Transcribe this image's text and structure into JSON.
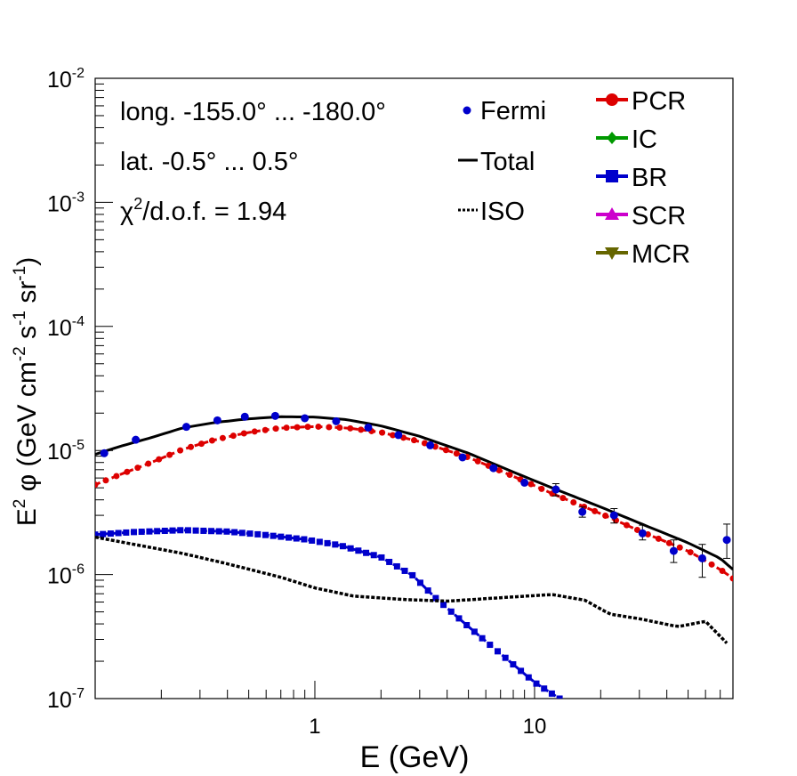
{
  "chart_data": {
    "type": "line",
    "xlabel": "E (GeV)",
    "ylabel_parts": {
      "a": "E",
      "a_sup": "2",
      "b": " φ (GeV cm",
      "b_sup": "-2",
      "c": " s",
      "c_sup": "-1",
      "d": " sr",
      "d_sup": "-1",
      "e": ")"
    },
    "x_scale": "log",
    "y_scale": "log",
    "xlim": [
      0.1,
      80
    ],
    "ylim": [
      1e-07,
      0.01
    ],
    "x_tick_labels": [
      {
        "value": 1,
        "label": "1"
      },
      {
        "value": 10,
        "label": "10"
      }
    ],
    "y_tick_labels": [
      {
        "value": 1e-07,
        "base": "10",
        "exp": "-7"
      },
      {
        "value": 1e-06,
        "base": "10",
        "exp": "-6"
      },
      {
        "value": 1e-05,
        "base": "10",
        "exp": "-5"
      },
      {
        "value": 0.0001,
        "base": "10",
        "exp": "-4"
      },
      {
        "value": 0.001,
        "base": "10",
        "exp": "-3"
      },
      {
        "value": 0.01,
        "base": "10",
        "exp": "-2"
      }
    ],
    "annotations": {
      "line1": "long. -155.0° ... -180.0°",
      "line2": "lat. -0.5° ... 0.5°",
      "line3_a": "χ",
      "line3_sup": "2",
      "line3_b": "/d.o.f. = 1.94"
    },
    "legend_left": [
      {
        "label": "Fermi",
        "style": "dot",
        "color": "#0000cc"
      },
      {
        "label": "Total",
        "style": "solid",
        "color": "#000000"
      },
      {
        "label": "ISO",
        "style": "dotted",
        "color": "#000000"
      }
    ],
    "legend_right": [
      {
        "label": "PCR",
        "marker": "circle",
        "color": "#dd0000"
      },
      {
        "label": "IC",
        "marker": "diamond",
        "color": "#009900"
      },
      {
        "label": "BR",
        "marker": "square",
        "color": "#0000cc"
      },
      {
        "label": "SCR",
        "marker": "triangle-up",
        "color": "#cc00cc"
      },
      {
        "label": "MCR",
        "marker": "triangle-down",
        "color": "#666600"
      }
    ],
    "series": [
      {
        "name": "Total",
        "style": "solid",
        "color": "#000000",
        "points": [
          [
            0.1,
            9.3e-06
          ],
          [
            0.13,
            1.08e-05
          ],
          [
            0.18,
            1.27e-05
          ],
          [
            0.25,
            1.52e-05
          ],
          [
            0.35,
            1.68e-05
          ],
          [
            0.5,
            1.8e-05
          ],
          [
            0.7,
            1.87e-05
          ],
          [
            1.0,
            1.86e-05
          ],
          [
            1.4,
            1.77e-05
          ],
          [
            2.0,
            1.58e-05
          ],
          [
            3.0,
            1.3e-05
          ],
          [
            5.0,
            9.5e-06
          ],
          [
            8.0,
            6.7e-06
          ],
          [
            12,
            5e-06
          ],
          [
            20,
            3.5e-06
          ],
          [
            30,
            2.6e-06
          ],
          [
            50,
            1.8e-06
          ],
          [
            70,
            1.35e-06
          ],
          [
            80,
            1.1e-06
          ]
        ]
      },
      {
        "name": "PCR",
        "style": "dashed-markers",
        "color": "#dd0000",
        "points": [
          [
            0.1,
            5.3e-06
          ],
          [
            0.13,
            6.4e-06
          ],
          [
            0.18,
            8e-06
          ],
          [
            0.25,
            1.02e-05
          ],
          [
            0.35,
            1.22e-05
          ],
          [
            0.5,
            1.4e-05
          ],
          [
            0.7,
            1.52e-05
          ],
          [
            1.0,
            1.56e-05
          ],
          [
            1.4,
            1.52e-05
          ],
          [
            2.0,
            1.4e-05
          ],
          [
            3.0,
            1.18e-05
          ],
          [
            5.0,
            8.8e-06
          ],
          [
            8.0,
            6.2e-06
          ],
          [
            12,
            4.5e-06
          ],
          [
            20,
            3.1e-06
          ],
          [
            30,
            2.25e-06
          ],
          [
            50,
            1.55e-06
          ],
          [
            70,
            1.1e-06
          ],
          [
            80,
            9.3e-07
          ]
        ]
      },
      {
        "name": "BR",
        "style": "dashed-markers",
        "color": "#0000cc",
        "points": [
          [
            0.1,
            2.1e-06
          ],
          [
            0.15,
            2.2e-06
          ],
          [
            0.25,
            2.28e-06
          ],
          [
            0.4,
            2.22e-06
          ],
          [
            0.6,
            2.08e-06
          ],
          [
            0.9,
            1.92e-06
          ],
          [
            1.3,
            1.72e-06
          ],
          [
            2.0,
            1.38e-06
          ],
          [
            2.8,
            9.8e-07
          ],
          [
            3.5,
            6.6e-07
          ],
          [
            5.0,
            3.8e-07
          ],
          [
            7.0,
            2.3e-07
          ],
          [
            10,
            1.35e-07
          ],
          [
            13,
            1e-07
          ]
        ]
      },
      {
        "name": "ISO",
        "style": "dotted",
        "color": "#000000",
        "points": [
          [
            0.1,
            2e-06
          ],
          [
            0.15,
            1.75e-06
          ],
          [
            0.25,
            1.48e-06
          ],
          [
            0.4,
            1.22e-06
          ],
          [
            0.7,
            9.5e-07
          ],
          [
            1.0,
            7.8e-07
          ],
          [
            1.5,
            6.7e-07
          ],
          [
            2.5,
            6.3e-07
          ],
          [
            4.0,
            6.1e-07
          ],
          [
            7.0,
            6.5e-07
          ],
          [
            12,
            6.9e-07
          ],
          [
            17,
            6.2e-07
          ],
          [
            22,
            4.8e-07
          ],
          [
            30,
            4.4e-07
          ],
          [
            45,
            3.8e-07
          ],
          [
            60,
            4.2e-07
          ],
          [
            75,
            2.8e-07
          ]
        ]
      },
      {
        "name": "Fermi",
        "style": "points",
        "color": "#0000cc",
        "points": [
          [
            0.11,
            9.5e-06,
            0.0,
            0.0
          ],
          [
            0.153,
            1.22e-05,
            0,
            0
          ],
          [
            0.26,
            1.55e-05,
            0,
            0
          ],
          [
            0.36,
            1.75e-05,
            0,
            0
          ],
          [
            0.48,
            1.87e-05,
            0,
            0
          ],
          [
            0.66,
            1.9e-05,
            0,
            0
          ],
          [
            0.9,
            1.82e-05,
            0,
            0
          ],
          [
            1.25,
            1.72e-05,
            0,
            0
          ],
          [
            1.75,
            1.53e-05,
            0,
            0
          ],
          [
            2.4,
            1.33e-05,
            0,
            0
          ],
          [
            3.35,
            1.1e-05,
            0,
            0
          ],
          [
            4.7,
            8.8e-06,
            0,
            0
          ],
          [
            6.5,
            7.2e-06,
            0,
            0
          ],
          [
            9.0,
            5.5e-06,
            0,
            0
          ],
          [
            12.5,
            4.85e-06,
            4.3e-06,
            5.4e-06
          ],
          [
            16.5,
            3.2e-06,
            2.9e-06,
            3.5e-06
          ],
          [
            23,
            3e-06,
            2.6e-06,
            3.4e-06
          ],
          [
            31,
            2.15e-06,
            1.9e-06,
            2.5e-06
          ],
          [
            43,
            1.55e-06,
            1.25e-06,
            1.9e-06
          ],
          [
            58,
            1.35e-06,
            9.5e-07,
            1.75e-06
          ],
          [
            75,
            1.9e-06,
            1.35e-06,
            2.55e-06
          ]
        ]
      }
    ]
  }
}
